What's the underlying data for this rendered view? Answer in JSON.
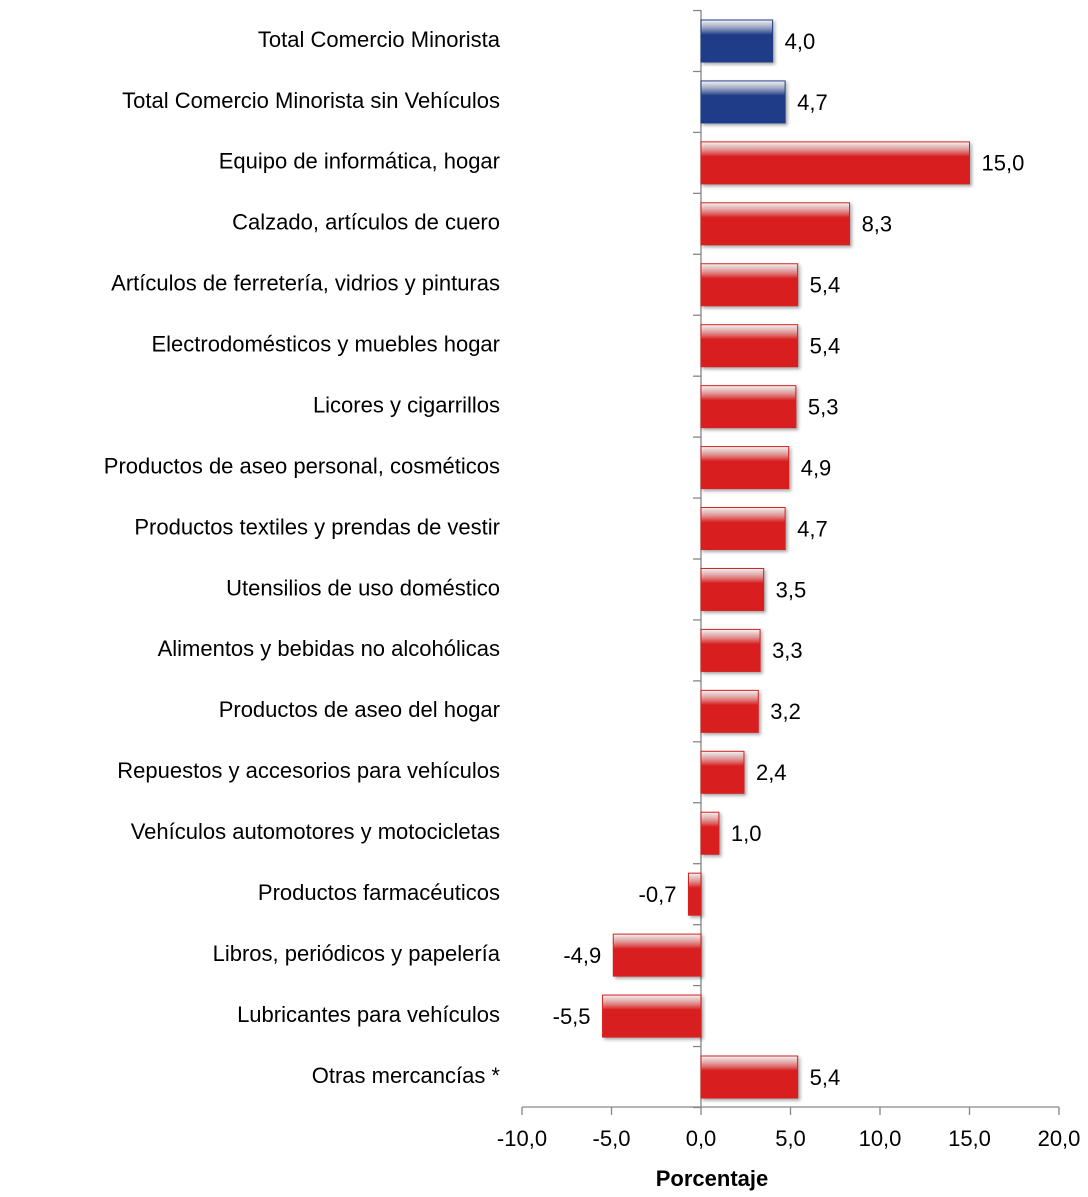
{
  "chart_data": {
    "type": "bar",
    "orientation": "horizontal",
    "x_label": "Porcentaje",
    "categories": [
      "Total Comercio Minorista",
      "Total Comercio Minorista sin Vehículos",
      "Equipo de informática, hogar",
      "Calzado, artículos de cuero",
      "Artículos de ferretería, vidrios y pinturas",
      "Electrodomésticos y muebles hogar",
      "Licores y cigarrillos",
      "Productos de aseo personal, cosméticos",
      "Productos textiles y prendas de vestir",
      "Utensilios de uso doméstico",
      "Alimentos y bebidas no alcohólicas",
      "Productos de aseo del  hogar",
      "Repuestos y accesorios para vehículos",
      "Vehículos automotores y motocicletas",
      "Productos farmacéuticos",
      "Libros, periódicos y papelería",
      "Lubricantes para vehículos",
      "Otras mercancías  *"
    ],
    "values": [
      4.0,
      4.7,
      15.0,
      8.3,
      5.4,
      5.4,
      5.3,
      4.9,
      4.7,
      3.5,
      3.3,
      3.2,
      2.4,
      1.0,
      -0.7,
      -4.9,
      -5.5,
      5.4
    ],
    "value_labels": [
      "4,0",
      "4,7",
      "15,0",
      "8,3",
      "5,4",
      "5,4",
      "5,3",
      "4,9",
      "4,7",
      "3,5",
      "3,3",
      "3,2",
      "2,4",
      "1,0",
      "-0,7",
      "-4,9",
      "-5,5",
      "5,4"
    ],
    "colors": [
      "#1f3c88",
      "#1f3c88",
      "#d81e1e",
      "#d81e1e",
      "#d81e1e",
      "#d81e1e",
      "#d81e1e",
      "#d81e1e",
      "#d81e1e",
      "#d81e1e",
      "#d81e1e",
      "#d81e1e",
      "#d81e1e",
      "#d81e1e",
      "#d81e1e",
      "#d81e1e",
      "#d81e1e",
      "#d81e1e"
    ],
    "xlim": [
      -10,
      20
    ],
    "xticks": [
      {
        "value": -10,
        "label": "-10,0"
      },
      {
        "value": -5,
        "label": "-5,0"
      },
      {
        "value": 0,
        "label": "0,0"
      },
      {
        "value": 5,
        "label": "5,0"
      },
      {
        "value": 10,
        "label": "10,0"
      },
      {
        "value": 15,
        "label": "15,0"
      },
      {
        "value": 20,
        "label": "20,0"
      }
    ]
  }
}
